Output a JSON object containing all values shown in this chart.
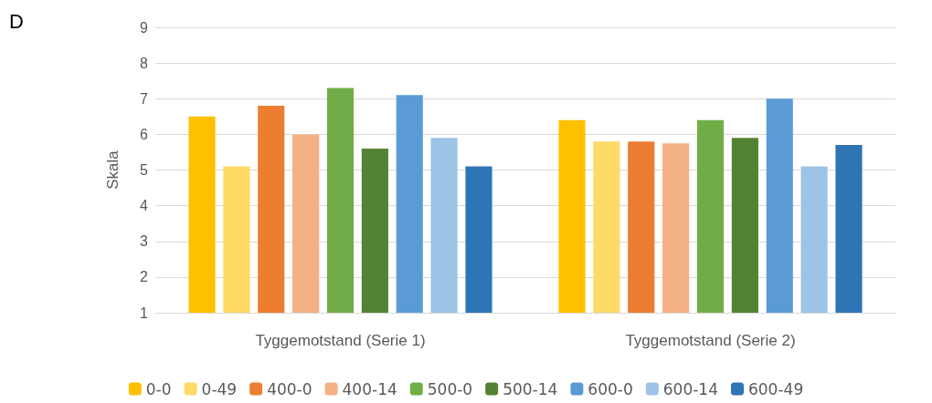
{
  "chart_data": {
    "type": "bar",
    "ylabel": "Skala",
    "annotations": [
      "D"
    ],
    "categories": [
      "Tyggemotstand (Serie 1)",
      "Tyggemotstand (Serie 2)"
    ],
    "series": [
      {
        "name": "0-0",
        "color": "#ffc000",
        "values": [
          6.5,
          6.4
        ]
      },
      {
        "name": "0-49",
        "color": "#ffd966",
        "values": [
          5.1,
          5.8
        ]
      },
      {
        "name": "400-0",
        "color": "#ed7d31",
        "values": [
          6.8,
          5.8
        ]
      },
      {
        "name": "400-14",
        "color": "#f4b183",
        "values": [
          6.0,
          5.75
        ]
      },
      {
        "name": "500-0",
        "color": "#70ad47",
        "values": [
          7.3,
          6.4
        ]
      },
      {
        "name": "500-14",
        "color": "#548235",
        "values": [
          5.6,
          5.9
        ]
      },
      {
        "name": "600-0",
        "color": "#5b9bd5",
        "values": [
          7.1,
          7.0
        ]
      },
      {
        "name": "600-14",
        "color": "#9dc3e6",
        "values": [
          5.9,
          5.1
        ]
      },
      {
        "name": "600-49",
        "color": "#2e75b6",
        "values": [
          5.1,
          5.7
        ]
      }
    ],
    "ylim": [
      1,
      9
    ],
    "yticks": [
      1,
      2,
      3,
      4,
      5,
      6,
      7,
      8,
      9
    ],
    "grid": "y",
    "legend": "bottom"
  }
}
